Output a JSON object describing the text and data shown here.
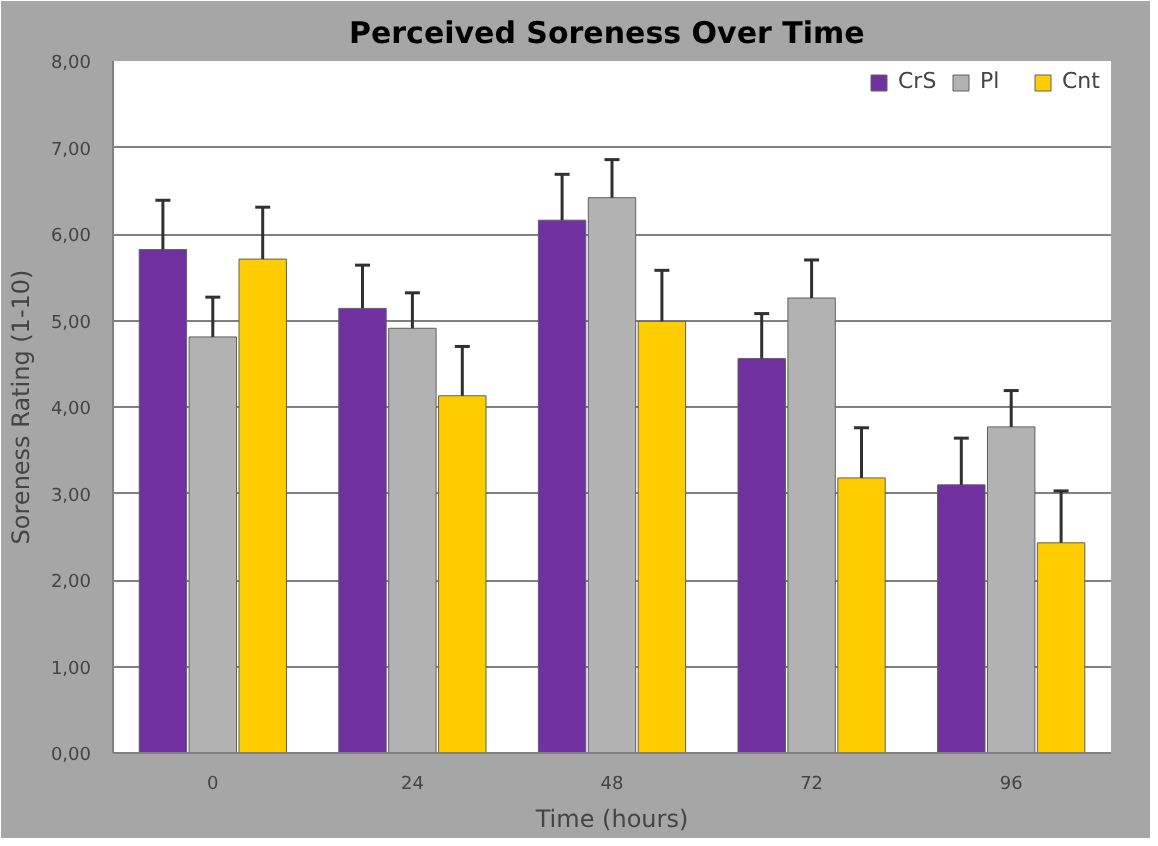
{
  "chart_data": {
    "type": "bar",
    "title": "Perceived  Soreness Over Time",
    "xlabel": "Time (hours)",
    "ylabel": "Soreness Rating (1-10)",
    "categories": [
      "0",
      "24",
      "48",
      "72",
      "96"
    ],
    "series": [
      {
        "name": "CrS",
        "color": "#7030a0",
        "values": [
          5.82,
          5.14,
          6.16,
          4.56,
          3.1
        ],
        "errors": [
          [
            5.82,
            6.39
          ],
          [
            5.14,
            5.64
          ],
          [
            6.16,
            6.69
          ],
          [
            4.56,
            5.08
          ],
          [
            3.1,
            3.64
          ]
        ]
      },
      {
        "name": "Pl",
        "color": "#b2b2b2",
        "values": [
          4.81,
          4.91,
          6.42,
          5.26,
          3.77
        ],
        "errors": [
          [
            4.81,
            5.27
          ],
          [
            4.91,
            5.32
          ],
          [
            6.42,
            6.86
          ],
          [
            5.26,
            5.7
          ],
          [
            3.77,
            4.19
          ]
        ]
      },
      {
        "name": "Cnt",
        "color": "#ffcc00",
        "values": [
          5.71,
          4.13,
          4.99,
          3.18,
          2.43
        ],
        "errors": [
          [
            5.71,
            6.31
          ],
          [
            4.13,
            4.7
          ],
          [
            4.99,
            5.58
          ],
          [
            3.18,
            3.76
          ],
          [
            2.43,
            3.03
          ]
        ]
      }
    ],
    "ylim": [
      0,
      8
    ],
    "yticks": [
      {
        "value": 0,
        "label": "0,00"
      },
      {
        "value": 1,
        "label": "1,00"
      },
      {
        "value": 2,
        "label": "2,00"
      },
      {
        "value": 3,
        "label": "3,00"
      },
      {
        "value": 4,
        "label": "4,00"
      },
      {
        "value": 5,
        "label": "5,00"
      },
      {
        "value": 6,
        "label": "6,00"
      },
      {
        "value": 7,
        "label": "7,00"
      },
      {
        "value": 8,
        "label": "8,00"
      }
    ],
    "grid": "y",
    "legend": "top right"
  }
}
